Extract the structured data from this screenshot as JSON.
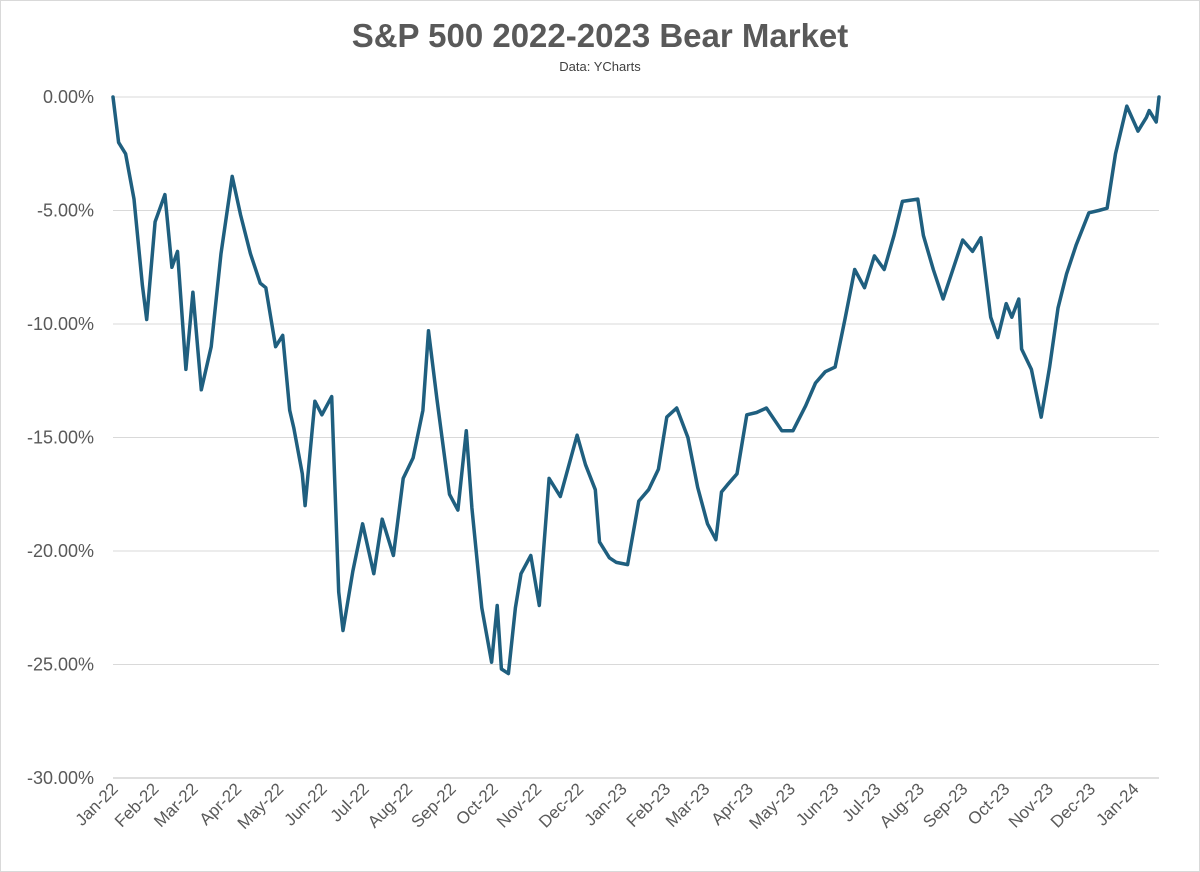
{
  "chart_data": {
    "type": "line",
    "title": "S&P 500 2022-2023 Bear Market",
    "subtitle": "Data: YCharts",
    "xlabel": "",
    "ylabel": "",
    "ylim": [
      -30,
      0
    ],
    "y_ticks": [
      "0.00%",
      "-5.00%",
      "-10.00%",
      "-15.00%",
      "-20.00%",
      "-25.00%",
      "-30.00%"
    ],
    "y_tick_values": [
      0,
      -5,
      -10,
      -15,
      -20,
      -25,
      -30
    ],
    "x_ticks": [
      "Jan-22",
      "Feb-22",
      "Mar-22",
      "Apr-22",
      "May-22",
      "Jun-22",
      "Jul-22",
      "Aug-22",
      "Sep-22",
      "Oct-22",
      "Nov-22",
      "Dec-22",
      "Jan-23",
      "Feb-23",
      "Mar-23",
      "Apr-23",
      "May-23",
      "Jun-23",
      "Jul-23",
      "Aug-23",
      "Sep-23",
      "Oct-23",
      "Nov-23",
      "Dec-23",
      "Jan-24"
    ],
    "line_color": "#1f5f7f",
    "gridlines": "horizontal",
    "legend": "none",
    "series": [
      {
        "x": [
          "2022-01-03",
          "2022-01-07",
          "2022-01-12",
          "2022-01-18",
          "2022-01-24",
          "2022-01-27",
          "2022-02-02",
          "2022-02-09",
          "2022-02-14",
          "2022-02-18",
          "2022-02-24",
          "2022-03-01",
          "2022-03-07",
          "2022-03-14",
          "2022-03-21",
          "2022-03-29",
          "2022-04-04",
          "2022-04-11",
          "2022-04-18",
          "2022-04-22",
          "2022-04-29",
          "2022-05-04",
          "2022-05-09",
          "2022-05-12",
          "2022-05-18",
          "2022-05-20",
          "2022-05-27",
          "2022-06-01",
          "2022-06-08",
          "2022-06-13",
          "2022-06-16",
          "2022-06-23",
          "2022-06-30",
          "2022-07-08",
          "2022-07-14",
          "2022-07-22",
          "2022-07-29",
          "2022-08-05",
          "2022-08-12",
          "2022-08-16",
          "2022-08-22",
          "2022-08-31",
          "2022-09-06",
          "2022-09-12",
          "2022-09-16",
          "2022-09-23",
          "2022-09-30",
          "2022-10-04",
          "2022-10-07",
          "2022-10-12",
          "2022-10-17",
          "2022-10-21",
          "2022-10-28",
          "2022-11-03",
          "2022-11-10",
          "2022-11-18",
          "2022-11-30",
          "2022-12-06",
          "2022-12-13",
          "2022-12-16",
          "2022-12-23",
          "2022-12-28",
          "2023-01-05",
          "2023-01-13",
          "2023-01-20",
          "2023-01-27",
          "2023-02-02",
          "2023-02-09",
          "2023-02-17",
          "2023-02-24",
          "2023-03-03",
          "2023-03-09",
          "2023-03-13",
          "2023-03-17",
          "2023-03-24",
          "2023-03-31",
          "2023-04-07",
          "2023-04-14",
          "2023-04-25",
          "2023-05-03",
          "2023-05-12",
          "2023-05-19",
          "2023-05-26",
          "2023-06-02",
          "2023-06-09",
          "2023-06-16",
          "2023-06-23",
          "2023-06-30",
          "2023-07-07",
          "2023-07-14",
          "2023-07-20",
          "2023-07-31",
          "2023-08-04",
          "2023-08-11",
          "2023-08-18",
          "2023-08-25",
          "2023-09-01",
          "2023-09-08",
          "2023-09-14",
          "2023-09-21",
          "2023-09-26",
          "2023-10-02",
          "2023-10-06",
          "2023-10-11",
          "2023-10-13",
          "2023-10-20",
          "2023-10-27",
          "2023-11-02",
          "2023-11-08",
          "2023-11-14",
          "2023-11-21",
          "2023-11-30",
          "2023-12-07",
          "2023-12-13",
          "2023-12-19",
          "2023-12-27",
          "2024-01-04",
          "2024-01-10",
          "2024-01-12",
          "2024-01-17",
          "2024-01-19"
        ],
        "values": [
          0.0,
          -2.0,
          -2.5,
          -4.5,
          -8.3,
          -9.8,
          -5.5,
          -4.3,
          -7.5,
          -6.8,
          -12.0,
          -8.6,
          -12.9,
          -11.0,
          -6.9,
          -3.5,
          -5.2,
          -6.9,
          -8.2,
          -8.4,
          -11.0,
          -10.5,
          -13.8,
          -14.6,
          -16.6,
          -18.0,
          -13.4,
          -14.0,
          -13.2,
          -21.8,
          -23.5,
          -20.9,
          -18.8,
          -21.0,
          -18.6,
          -20.2,
          -16.8,
          -15.9,
          -13.8,
          -10.3,
          -13.3,
          -17.5,
          -18.2,
          -14.7,
          -18.1,
          -22.5,
          -24.9,
          -22.4,
          -25.2,
          -25.4,
          -22.5,
          -21.0,
          -20.2,
          -22.4,
          -16.8,
          -17.6,
          -14.9,
          -16.2,
          -17.3,
          -19.6,
          -20.3,
          -20.5,
          -20.6,
          -17.8,
          -17.3,
          -16.4,
          -14.1,
          -13.7,
          -15.0,
          -17.2,
          -18.8,
          -19.5,
          -17.4,
          -17.1,
          -16.6,
          -14.0,
          -13.9,
          -13.7,
          -14.7,
          -14.7,
          -13.6,
          -12.6,
          -12.1,
          -11.9,
          -9.8,
          -7.6,
          -8.4,
          -7.0,
          -7.6,
          -6.1,
          -4.6,
          -4.5,
          -6.1,
          -7.6,
          -8.9,
          -7.6,
          -6.3,
          -6.8,
          -6.2,
          -9.7,
          -10.6,
          -9.1,
          -9.7,
          -8.9,
          -11.1,
          -12.0,
          -14.1,
          -11.9,
          -9.3,
          -7.8,
          -6.5,
          -5.1,
          -5.0,
          -4.9,
          -2.5,
          -0.4,
          -1.5,
          -0.9,
          -0.6,
          -1.1,
          0.0
        ]
      }
    ]
  }
}
